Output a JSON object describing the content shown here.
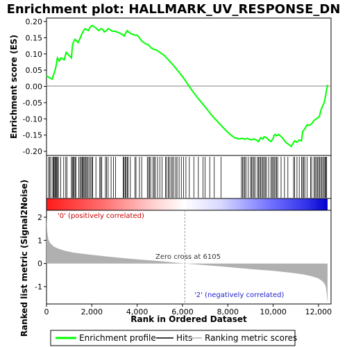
{
  "chart_data": {
    "type": "line",
    "title": "Enrichment plot: HALLMARK_UV_RESPONSE_DN",
    "n_ranks": 12400,
    "panels": {
      "es": {
        "ylabel": "Enrichment score (ES)",
        "ylim": [
          -0.2,
          0.2
        ],
        "yticks": [
          "0.20",
          "0.15",
          "0.10",
          "0.05",
          "0.00",
          "-0.05",
          "-0.10",
          "-0.15",
          "-0.20"
        ],
        "ytick_values": [
          0.2,
          0.15,
          0.1,
          0.05,
          0.0,
          -0.05,
          -0.1,
          -0.15,
          -0.2
        ],
        "series": [
          {
            "name": "Enrichment profile",
            "color": "#00ff00",
            "x": [
              0,
              100,
              250,
              330,
              400,
              480,
              560,
              650,
              780,
              870,
              1000,
              1100,
              1150,
              1200,
              1260,
              1330,
              1400,
              1480,
              1550,
              1620,
              1700,
              1780,
              1850,
              1920,
              2000,
              2150,
              2300,
              2400,
              2480,
              2550,
              2650,
              2720,
              2800,
              2900,
              3000,
              3100,
              3200,
              3350,
              3430,
              3500,
              3560,
              3650,
              3750,
              3900,
              4000,
              4100,
              4200,
              4350,
              4500,
              4600,
              4700,
              4850,
              5000,
              5200,
              5400,
              5600,
              5800,
              6000,
              6105,
              6300,
              6500,
              6700,
              6900,
              7100,
              7300,
              7500,
              7700,
              7900,
              8100,
              8300,
              8500,
              8650,
              8750,
              8850,
              8950,
              9050,
              9150,
              9250,
              9350,
              9450,
              9550,
              9600,
              9700,
              9800,
              9900,
              10000,
              10050,
              10100,
              10150,
              10250,
              10400,
              10550,
              10700,
              10800,
              10850,
              10950,
              11050,
              11150,
              11250,
              11300,
              11400,
              11500,
              11600,
              11700,
              11800,
              11900,
              12000,
              12050,
              12100,
              12150,
              12200,
              12250,
              12280,
              12310,
              12340,
              12370,
              12400
            ],
            "y": [
              0.033,
              0.028,
              0.022,
              0.04,
              0.055,
              0.088,
              0.078,
              0.088,
              0.082,
              0.105,
              0.095,
              0.088,
              0.13,
              0.138,
              0.145,
              0.14,
              0.135,
              0.148,
              0.16,
              0.17,
              0.178,
              0.175,
              0.172,
              0.182,
              0.188,
              0.182,
              0.172,
              0.178,
              0.176,
              0.168,
              0.172,
              0.178,
              0.175,
              0.17,
              0.17,
              0.168,
              0.165,
              0.16,
              0.155,
              0.165,
              0.172,
              0.166,
              0.162,
              0.158,
              0.158,
              0.15,
              0.14,
              0.132,
              0.128,
              0.12,
              0.115,
              0.112,
              0.105,
              0.095,
              0.08,
              0.065,
              0.048,
              0.03,
              0.02,
              0.0,
              -0.02,
              -0.038,
              -0.055,
              -0.072,
              -0.09,
              -0.105,
              -0.12,
              -0.135,
              -0.148,
              -0.158,
              -0.162,
              -0.16,
              -0.163,
              -0.16,
              -0.163,
              -0.165,
              -0.162,
              -0.165,
              -0.17,
              -0.158,
              -0.162,
              -0.155,
              -0.158,
              -0.165,
              -0.17,
              -0.16,
              -0.15,
              -0.148,
              -0.152,
              -0.148,
              -0.158,
              -0.172,
              -0.18,
              -0.185,
              -0.178,
              -0.168,
              -0.172,
              -0.165,
              -0.168,
              -0.14,
              -0.13,
              -0.118,
              -0.12,
              -0.115,
              -0.105,
              -0.1,
              -0.095,
              -0.09,
              -0.075,
              -0.065,
              -0.058,
              -0.05,
              -0.04,
              -0.03,
              -0.018,
              -0.005,
              0.005
            ]
          }
        ]
      },
      "hits": {
        "label": "Hits",
        "positions": [
          90,
          140,
          190,
          280,
          310,
          340,
          380,
          420,
          450,
          490,
          520,
          620,
          760,
          850,
          900,
          1100,
          1140,
          1180,
          1220,
          1260,
          1300,
          1420,
          1480,
          1530,
          1570,
          1610,
          1650,
          1690,
          1740,
          1780,
          1830,
          1880,
          1950,
          2000,
          2040,
          2180,
          2350,
          2390,
          2440,
          2600,
          2650,
          2720,
          2850,
          2950,
          3050,
          3380,
          3420,
          3470,
          3510,
          3560,
          3600,
          3700,
          3900,
          3950,
          4100,
          4200,
          4450,
          4500,
          4550,
          4600,
          4700,
          4750,
          4800,
          4900,
          5000,
          5100,
          5250,
          5300,
          5380,
          5420,
          5500,
          5550,
          5620,
          5700,
          5760,
          5850,
          5950,
          6050,
          6150,
          6300,
          6500,
          6700,
          6900,
          7000,
          7200,
          7400,
          7700,
          8600,
          8650,
          8700,
          8750,
          8800,
          8900,
          9000,
          9050,
          9100,
          9150,
          9200,
          9300,
          9350,
          9400,
          9450,
          9500,
          9550,
          9600,
          9650,
          9700,
          9800,
          9900,
          9950,
          10000,
          10050,
          10100,
          10150,
          10200,
          10350,
          10500,
          10650,
          10900,
          10950,
          11050,
          11150,
          11250,
          11300,
          11350,
          11400,
          11500,
          11650,
          11700,
          11800,
          11850,
          11900,
          11950,
          12000,
          12050,
          12100,
          12150,
          12200,
          12250,
          12300,
          12330,
          12360
        ]
      },
      "heatmap": {
        "zero_cross": 6105
      },
      "metric": {
        "ylabel": "Ranked list metric (Signal2Noise)",
        "xlabel": "Rank in Ordered Dataset",
        "ylim": [
          -1.75,
          2.3
        ],
        "yticks": [
          "2",
          "1",
          "0",
          "-1"
        ],
        "ytick_values": [
          2,
          1,
          0,
          -1
        ],
        "x": [
          0,
          30,
          80,
          150,
          300,
          500,
          800,
          1200,
          2000,
          3000,
          4000,
          5000,
          6105,
          7000,
          8000,
          9000,
          10000,
          10800,
          11300,
          11700,
          12000,
          12150,
          12250,
          12320,
          12360,
          12400
        ],
        "y": [
          2.0,
          1.4,
          1.05,
          0.9,
          0.75,
          0.65,
          0.55,
          0.47,
          0.37,
          0.27,
          0.18,
          0.1,
          0.0,
          -0.07,
          -0.15,
          -0.24,
          -0.32,
          -0.4,
          -0.47,
          -0.55,
          -0.65,
          -0.75,
          -0.85,
          -1.0,
          -1.3,
          -1.7
        ]
      }
    },
    "xticks": [
      "0",
      "2,000",
      "4,000",
      "6,000",
      "8,000",
      "10,000",
      "12,000"
    ],
    "xtick_values": [
      0,
      2000,
      4000,
      6000,
      8000,
      10000,
      12000
    ],
    "annotations": {
      "positive": "'0' (positively correlated)",
      "negative": "'2' (negatively correlated)",
      "zero_cross": "Zero cross at 6105"
    },
    "colors": {
      "profile": "#00ff00",
      "positive_text": "#cc0000",
      "negative_text": "#2222cc",
      "metric_fill": "#b0b0b0"
    }
  },
  "legend": {
    "items": [
      {
        "label": "Enrichment profile",
        "color": "#00ff00"
      },
      {
        "label": "Hits",
        "color": "#000000"
      },
      {
        "label": "Ranking metric scores",
        "color": "#b0b0b0"
      }
    ]
  }
}
